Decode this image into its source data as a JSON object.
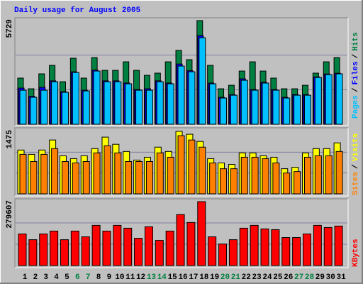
{
  "chart_data": [
    {
      "type": "bar",
      "title": "Daily usage for August 2005",
      "legend_separator": "/",
      "categories": [
        "1",
        "2",
        "3",
        "4",
        "5",
        "6",
        "7",
        "8",
        "9",
        "10",
        "11",
        "12",
        "13",
        "14",
        "15",
        "16",
        "17",
        "18",
        "19",
        "20",
        "21",
        "22",
        "23",
        "24",
        "25",
        "26",
        "27",
        "28",
        "29",
        "30",
        "31"
      ],
      "category_label_colors": [
        "#000000",
        "#000000",
        "#000000",
        "#000000",
        "#000000",
        "#008040",
        "#008040",
        "#000000",
        "#000000",
        "#000000",
        "#000000",
        "#000000",
        "#008040",
        "#008040",
        "#000000",
        "#000000",
        "#000000",
        "#000000",
        "#000000",
        "#008040",
        "#008040",
        "#000000",
        "#000000",
        "#000000",
        "#000000",
        "#000000",
        "#008040",
        "#008040",
        "#000000",
        "#000000",
        "#000000"
      ],
      "ylim": [
        0,
        5729
      ],
      "yticks": [
        5729
      ],
      "series": [
        {
          "name": "Pages",
          "color": "#00C0FF",
          "values": [
            1880,
            1490,
            1880,
            2350,
            1765,
            2860,
            1840,
            2940,
            2350,
            2350,
            2235,
            1880,
            1880,
            2350,
            2235,
            3215,
            2900,
            4780,
            2235,
            1450,
            1605,
            2430,
            1880,
            2275,
            1880,
            1450,
            1605,
            1605,
            2585,
            2745,
            2785
          ]
        },
        {
          "name": "Files",
          "color": "#0000FF",
          "values": [
            2000,
            1550,
            2040,
            2400,
            1800,
            2900,
            1880,
            3000,
            2400,
            2400,
            2280,
            1920,
            1960,
            2400,
            2280,
            3330,
            2960,
            4900,
            2280,
            1490,
            1640,
            2510,
            1920,
            2320,
            1920,
            1490,
            1640,
            1640,
            2620,
            2780,
            2820
          ]
        },
        {
          "name": "Hits",
          "color": "#008040",
          "values": [
            2550,
            1960,
            2785,
            3255,
            2350,
            3650,
            2550,
            3685,
            2980,
            2980,
            3450,
            2980,
            2705,
            2825,
            3450,
            4080,
            3570,
            5729,
            3255,
            1960,
            2155,
            2940,
            3450,
            2940,
            2550,
            1960,
            1960,
            2155,
            2825,
            3450,
            3685
          ]
        }
      ]
    },
    {
      "type": "bar",
      "ylim": [
        0,
        1475
      ],
      "yticks": [
        1475
      ],
      "series": [
        {
          "name": "Sites",
          "color": "#FF8000",
          "values": [
            932,
            763,
            932,
            1068,
            763,
            729,
            763,
            966,
            1136,
            966,
            763,
            763,
            763,
            966,
            864,
            1373,
            1271,
            1102,
            729,
            593,
            593,
            864,
            864,
            831,
            729,
            492,
            525,
            864,
            898,
            898,
            1000
          ]
        },
        {
          "name": "Visits",
          "color": "#FFFF00",
          "values": [
            1034,
            932,
            1034,
            1271,
            898,
            831,
            898,
            1068,
            1339,
            1170,
            1000,
            797,
            864,
            1102,
            1000,
            1475,
            1407,
            1237,
            831,
            729,
            695,
            966,
            966,
            898,
            864,
            593,
            627,
            966,
            1068,
            1068,
            1203
          ]
        }
      ]
    },
    {
      "type": "bar",
      "ylim": [
        0,
        279607
      ],
      "yticks": [
        279607
      ],
      "series": [
        {
          "name": "KBytes",
          "color": "#FF0000",
          "values": [
            138248,
            113112,
            138248,
            150816,
            113112,
            150816,
            125680,
            175952,
            150816,
            175952,
            163384,
            119396,
            169668,
            109970,
            150816,
            223082,
            188520,
            279607,
            125680,
            94260,
            113112,
            163384,
            175952,
            160242,
            157100,
            122538,
            122538,
            138248,
            175952,
            166526,
            172810
          ]
        }
      ]
    }
  ]
}
